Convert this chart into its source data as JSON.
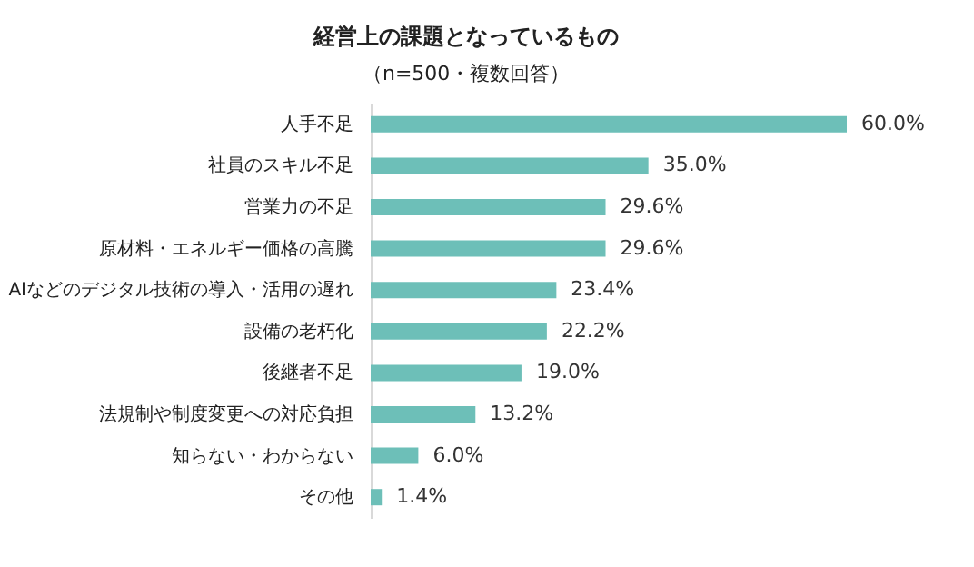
{
  "chart_data": {
    "type": "bar",
    "orientation": "horizontal",
    "title": "経営上の課題となっているもの",
    "subtitle": "（n=500・複数回答）",
    "categories": [
      "人手不足",
      "社員のスキル不足",
      "営業力の不足",
      "原材料・エネルギー価格の高騰",
      "AIなどのデジタル技術の導入・活用の遅れ",
      "設備の老朽化",
      "後継者不足",
      "法規制や制度変更への対応負担",
      "知らない・わからない",
      "その他"
    ],
    "values": [
      60.0,
      35.0,
      29.6,
      29.6,
      23.4,
      22.2,
      19.0,
      13.2,
      6.0,
      1.4
    ],
    "value_labels": [
      "60.0%",
      "35.0%",
      "29.6%",
      "29.6%",
      "23.4%",
      "22.2%",
      "19.0%",
      "13.2%",
      "6.0%",
      "1.4%"
    ],
    "color": "#6dbfb8",
    "tick_labels": "y"
  }
}
